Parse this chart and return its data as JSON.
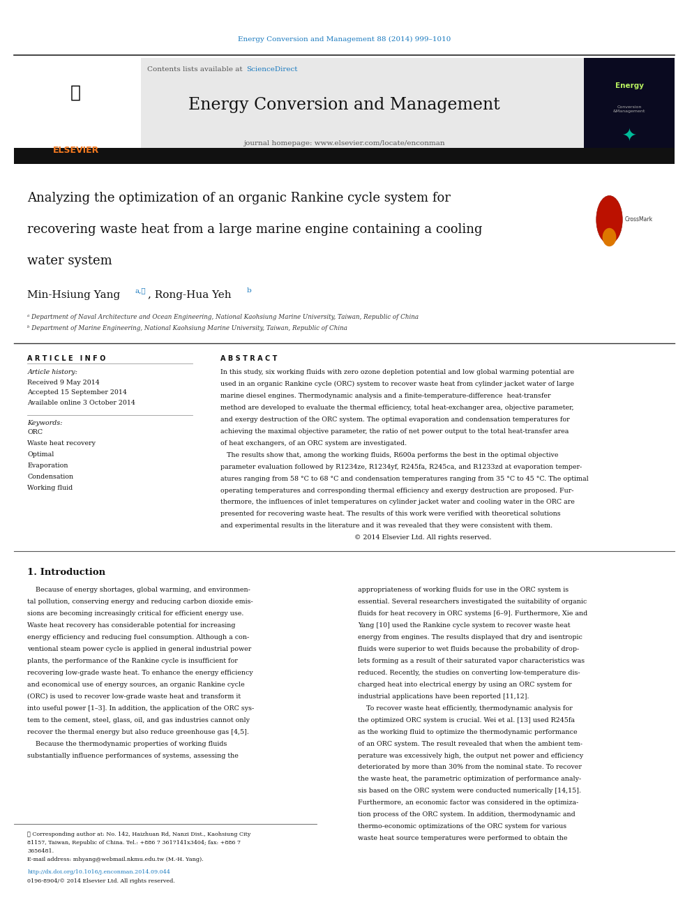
{
  "page_width": 9.92,
  "page_height": 13.23,
  "background_color": "#ffffff",
  "top_journal_ref": "Energy Conversion and Management 88 (2014) 999–1010",
  "top_journal_ref_color": "#1a7abf",
  "journal_name": "Energy Conversion and Management",
  "journal_homepage": "journal homepage: www.elsevier.com/locate/enconman",
  "sciencedirect_color": "#1a7abf",
  "elsevier_color": "#f47920",
  "header_bg": "#e8e8e8",
  "article_title_line1": "Analyzing the optimization of an organic Rankine cycle system for",
  "article_title_line2": "recovering waste heat from a large marine engine containing a cooling",
  "article_title_line3": "water system",
  "link_color": "#1a7abf",
  "keywords": [
    "ORC",
    "Waste heat recovery",
    "Optimal",
    "Evaporation",
    "Condensation",
    "Working fluid"
  ],
  "abs_lines": [
    "In this study, six working fluids with zero ozone depletion potential and low global warming potential are",
    "used in an organic Rankine cycle (ORC) system to recover waste heat from cylinder jacket water of large",
    "marine diesel engines. Thermodynamic analysis and a finite-temperature-difference  heat-transfer",
    "method are developed to evaluate the thermal efficiency, total heat-exchanger area, objective parameter,",
    "and exergy destruction of the ORC system. The optimal evaporation and condensation temperatures for",
    "achieving the maximal objective parameter, the ratio of net power output to the total heat-transfer area",
    "of heat exchangers, of an ORC system are investigated.",
    "   The results show that, among the working fluids, R600a performs the best in the optimal objective",
    "parameter evaluation followed by R1234ze, R1234yf, R245fa, R245ca, and R1233zd at evaporation temper-",
    "atures ranging from 58 °C to 68 °C and condensation temperatures ranging from 35 °C to 45 °C. The optimal",
    "operating temperatures and corresponding thermal efficiency and exergy destruction are proposed. Fur-",
    "thermore, the influences of inlet temperatures on cylinder jacket water and cooling water in the ORC are",
    "presented for recovering waste heat. The results of this work were verified with theoretical solutions",
    "and experimental results in the literature and it was revealed that they were consistent with them.",
    "                                                                © 2014 Elsevier Ltd. All rights reserved."
  ],
  "col1_lines": [
    "    Because of energy shortages, global warming, and environmen-",
    "tal pollution, conserving energy and reducing carbon dioxide emis-",
    "sions are becoming increasingly critical for efficient energy use.",
    "Waste heat recovery has considerable potential for increasing",
    "energy efficiency and reducing fuel consumption. Although a con-",
    "ventional steam power cycle is applied in general industrial power",
    "plants, the performance of the Rankine cycle is insufficient for",
    "recovering low-grade waste heat. To enhance the energy efficiency",
    "and economical use of energy sources, an organic Rankine cycle",
    "(ORC) is used to recover low-grade waste heat and transform it",
    "into useful power [1–3]. In addition, the application of the ORC sys-",
    "tem to the cement, steel, glass, oil, and gas industries cannot only",
    "recover the thermal energy but also reduce greenhouse gas [4,5].",
    "    Because the thermodynamic properties of working fluids",
    "substantially influence performances of systems, assessing the"
  ],
  "col2_lines": [
    "appropriateness of working fluids for use in the ORC system is",
    "essential. Several researchers investigated the suitability of organic",
    "fluids for heat recovery in ORC systems [6–9]. Furthermore, Xie and",
    "Yang [10] used the Rankine cycle system to recover waste heat",
    "energy from engines. The results displayed that dry and isentropic",
    "fluids were superior to wet fluids because the probability of drop-",
    "lets forming as a result of their saturated vapor characteristics was",
    "reduced. Recently, the studies on converting low-temperature dis-",
    "charged heat into electrical energy by using an ORC system for",
    "industrial applications have been reported [11,12].",
    "    To recover waste heat efficiently, thermodynamic analysis for",
    "the optimized ORC system is crucial. Wei et al. [13] used R245fa",
    "as the working fluid to optimize the thermodynamic performance",
    "of an ORC system. The result revealed that when the ambient tem-",
    "perature was excessively high, the output net power and efficiency",
    "deteriorated by more than 30% from the nominal state. To recover",
    "the waste heat, the parametric optimization of performance analy-",
    "sis based on the ORC system were conducted numerically [14,15].",
    "Furthermore, an economic factor was considered in the optimiza-",
    "tion process of the ORC system. In addition, thermodynamic and",
    "thermo-economic optimizations of the ORC system for various",
    "waste heat source temperatures were performed to obtain the"
  ]
}
